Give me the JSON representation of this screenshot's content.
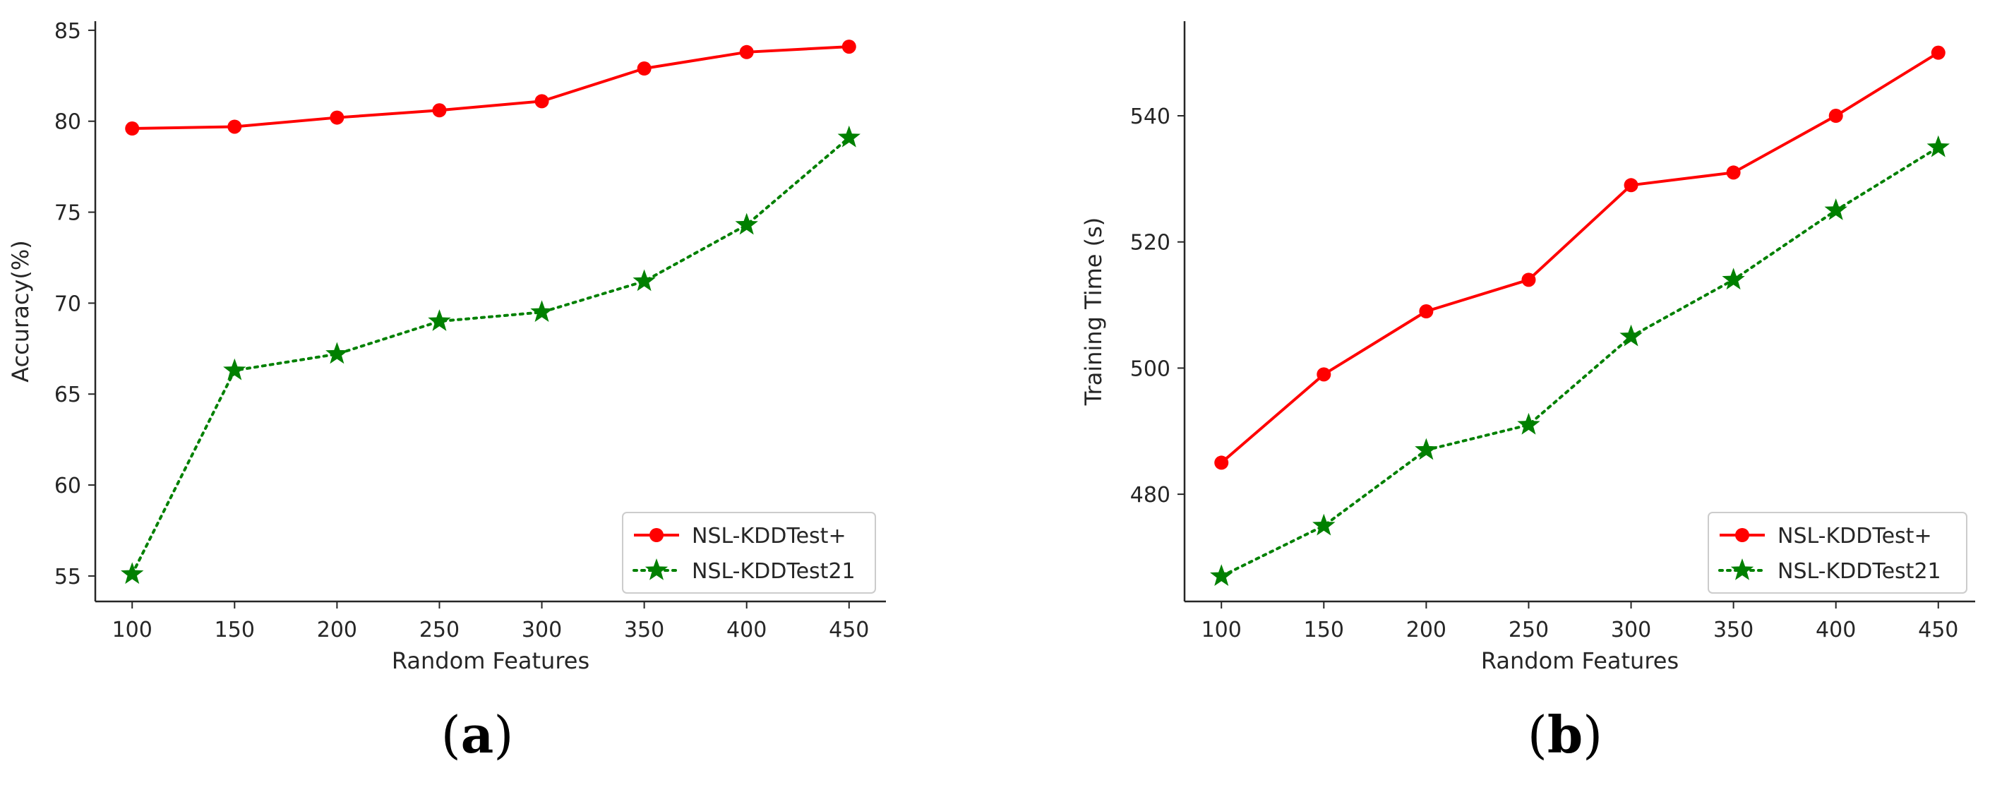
{
  "colors": {
    "series_plus": "#ff0000",
    "series_21": "#008000",
    "axis": "#262626",
    "legend_border": "#cccccc"
  },
  "chart_data": [
    {
      "type": "line",
      "panel": "a",
      "caption_letter": "a",
      "xlabel": "Random Features",
      "ylabel": "Accuracy(%)",
      "x": [
        100,
        150,
        200,
        250,
        300,
        350,
        400,
        450
      ],
      "xlim": [
        82,
        468
      ],
      "ylim": [
        53.6,
        85.5
      ],
      "xticks": [
        100,
        150,
        200,
        250,
        300,
        350,
        400,
        450
      ],
      "yticks": [
        55,
        60,
        65,
        70,
        75,
        80,
        85
      ],
      "legend_position": "bottom-right",
      "grid": false,
      "series": [
        {
          "name": "NSL-KDDTest+",
          "marker": "circle",
          "line_style": "solid",
          "color_key": "series_plus",
          "values": [
            79.6,
            79.7,
            80.2,
            80.6,
            81.1,
            82.9,
            83.8,
            84.1
          ]
        },
        {
          "name": "NSL-KDDTest21",
          "marker": "star",
          "line_style": "dotted",
          "color_key": "series_21",
          "values": [
            55.1,
            66.3,
            67.2,
            69.0,
            69.5,
            71.2,
            74.3,
            79.1
          ]
        }
      ]
    },
    {
      "type": "line",
      "panel": "b",
      "caption_letter": "b",
      "xlabel": "Random Features",
      "ylabel": "Training Time (s)",
      "x": [
        100,
        150,
        200,
        250,
        300,
        350,
        400,
        450
      ],
      "xlim": [
        82,
        468
      ],
      "ylim": [
        463,
        555
      ],
      "xticks": [
        100,
        150,
        200,
        250,
        300,
        350,
        400,
        450
      ],
      "yticks": [
        480,
        500,
        520,
        540
      ],
      "legend_position": "bottom-right",
      "grid": false,
      "series": [
        {
          "name": "NSL-KDDTest+",
          "marker": "circle",
          "line_style": "solid",
          "color_key": "series_plus",
          "values": [
            485,
            499,
            509,
            514,
            529,
            531,
            540,
            550
          ]
        },
        {
          "name": "NSL-KDDTest21",
          "marker": "star",
          "line_style": "dotted",
          "color_key": "series_21",
          "values": [
            467,
            475,
            487,
            491,
            505,
            514,
            525,
            535
          ]
        }
      ]
    }
  ]
}
